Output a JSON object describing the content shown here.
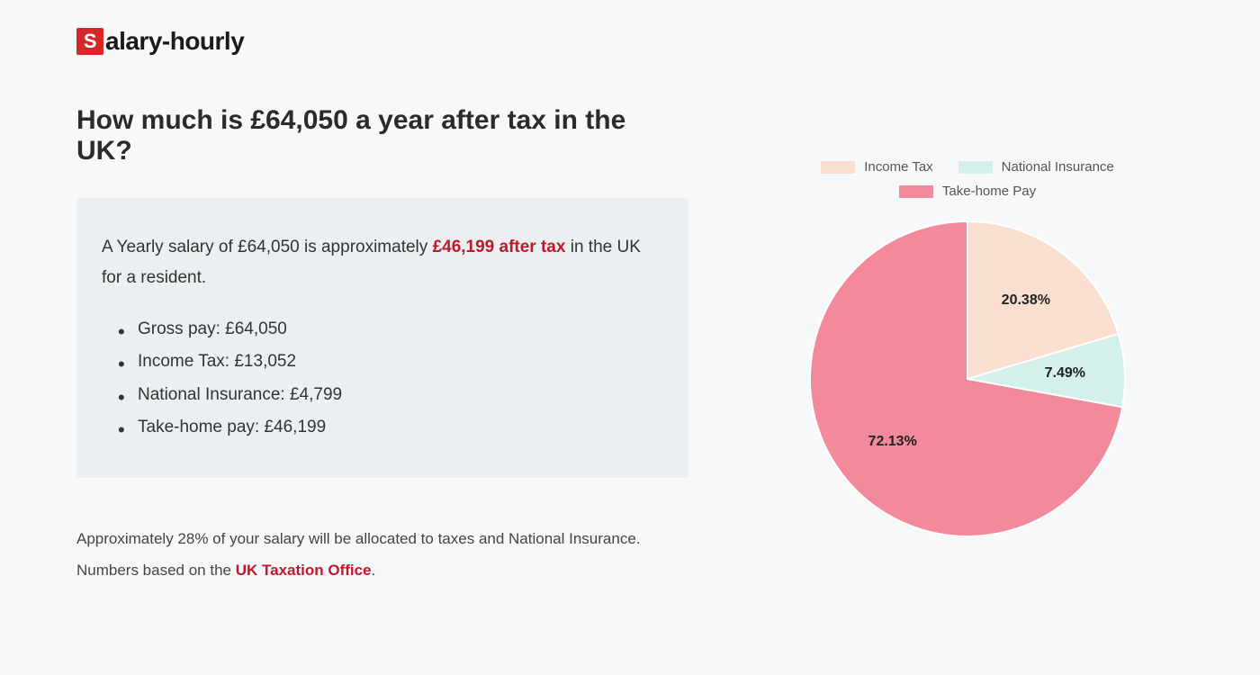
{
  "logo": {
    "s": "S",
    "rest": "alary-hourly"
  },
  "heading": "How much is £64,050 a year after tax in the UK?",
  "summary": {
    "pre": "A Yearly salary of £64,050 is approximately ",
    "highlight": "£46,199 after tax",
    "post": " in the UK for a resident."
  },
  "bullets": [
    "Gross pay: £64,050",
    "Income Tax: £13,052",
    "National Insurance: £4,799",
    "Take-home pay: £46,199"
  ],
  "footnote": {
    "line1": "Approximately 28% of your salary will be allocated to taxes and National Insurance.",
    "line2_pre": "Numbers based on the ",
    "link": "UK Taxation Office",
    "line2_post": "."
  },
  "chart": {
    "type": "pie",
    "radius": 175,
    "background_color": "#f6f8fa",
    "slices": [
      {
        "label": "Income Tax",
        "value": 20.38,
        "display": "20.38%",
        "color": "#fadfd1"
      },
      {
        "label": "National Insurance",
        "value": 7.49,
        "display": "7.49%",
        "color": "#d4f0ea"
      },
      {
        "label": "Take-home Pay",
        "value": 72.13,
        "display": "72.13%",
        "color": "#f28a9b"
      }
    ],
    "start_angle_deg": -90,
    "label_fontsize": 16,
    "label_fontweight": 700,
    "legend_fontsize": 15
  }
}
